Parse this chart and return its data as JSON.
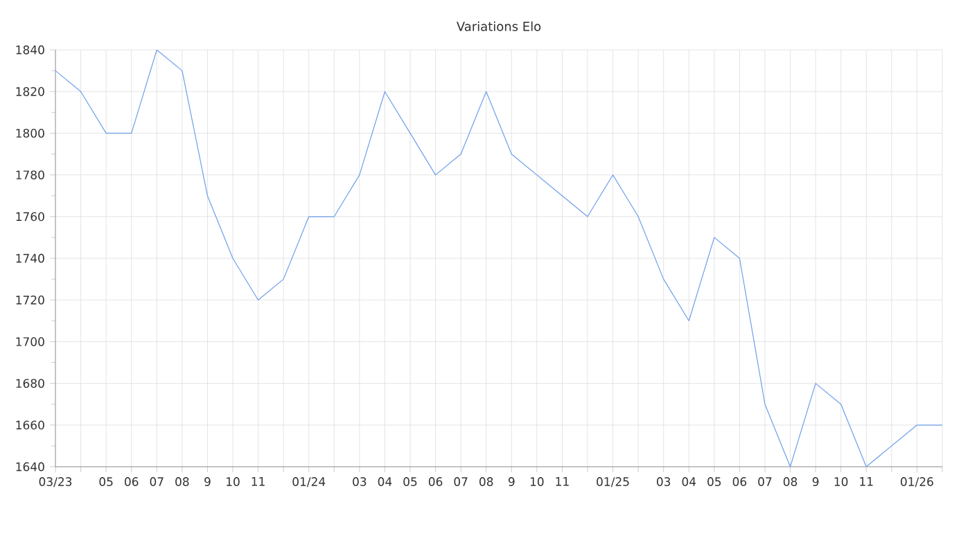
{
  "chart_data": {
    "type": "line",
    "title": "Variations Elo",
    "x": [
      "2023-03",
      "2023-04",
      "2023-05",
      "2023-06",
      "2023-07",
      "2023-08",
      "2023-09",
      "2023-10",
      "2023-11",
      "2023-12",
      "2024-01",
      "2024-02",
      "2024-03",
      "2024-04",
      "2024-05",
      "2024-06",
      "2024-07",
      "2024-08",
      "2024-09",
      "2024-10",
      "2024-11",
      "2024-12",
      "2025-01",
      "2025-02",
      "2025-03",
      "2025-04",
      "2025-05",
      "2025-06",
      "2025-07",
      "2025-08",
      "2025-09",
      "2025-10",
      "2025-11",
      "2025-12",
      "2026-01",
      "2026-02"
    ],
    "series": [
      {
        "color": "#6d9eeb",
        "values": [
          1830,
          1820,
          1800,
          1800,
          1840,
          1830,
          1770,
          1740,
          1720,
          1730,
          1760,
          1760,
          1780,
          1820,
          1800,
          1780,
          1790,
          1820,
          1790,
          1780,
          1770,
          1760,
          1780,
          1760,
          1730,
          1710,
          1750,
          1740,
          1670,
          1640,
          1680,
          1670,
          1640,
          1650,
          1660,
          1660
        ]
      }
    ],
    "xlim": [
      "2023-03",
      "2026-02"
    ],
    "xticks": [
      {
        "value": "2023-03",
        "label": "03/23"
      },
      {
        "value": "2023-04",
        "label": null
      },
      {
        "value": "2023-05",
        "label": "05"
      },
      {
        "value": "2023-06",
        "label": "06"
      },
      {
        "value": "2023-07",
        "label": "07"
      },
      {
        "value": "2023-08",
        "label": "08"
      },
      {
        "value": "2023-09",
        "label": "9"
      },
      {
        "value": "2023-10",
        "label": "10"
      },
      {
        "value": "2023-11",
        "label": "11"
      },
      {
        "value": "2023-12",
        "label": null
      },
      {
        "value": "2024-01",
        "label": "01/24"
      },
      {
        "value": "2024-02",
        "label": null
      },
      {
        "value": "2024-03",
        "label": "03"
      },
      {
        "value": "2024-04",
        "label": "04"
      },
      {
        "value": "2024-05",
        "label": "05"
      },
      {
        "value": "2024-06",
        "label": "06"
      },
      {
        "value": "2024-07",
        "label": "07"
      },
      {
        "value": "2024-08",
        "label": "08"
      },
      {
        "value": "2024-09",
        "label": "9"
      },
      {
        "value": "2024-10",
        "label": "10"
      },
      {
        "value": "2024-11",
        "label": "11"
      },
      {
        "value": "2024-12",
        "label": null
      },
      {
        "value": "2025-01",
        "label": "01/25"
      },
      {
        "value": "2025-02",
        "label": null
      },
      {
        "value": "2025-03",
        "label": "03"
      },
      {
        "value": "2025-04",
        "label": "04"
      },
      {
        "value": "2025-05",
        "label": "05"
      },
      {
        "value": "2025-06",
        "label": "06"
      },
      {
        "value": "2025-07",
        "label": "07"
      },
      {
        "value": "2025-08",
        "label": "08"
      },
      {
        "value": "2025-09",
        "label": "9"
      },
      {
        "value": "2025-10",
        "label": "10"
      },
      {
        "value": "2025-11",
        "label": "11"
      },
      {
        "value": "2025-12",
        "label": null
      },
      {
        "value": "2026-01",
        "label": "01/26"
      },
      {
        "value": "2026-02",
        "label": null
      }
    ],
    "ylim": [
      1640,
      1840
    ],
    "yticks": [
      1640,
      1660,
      1680,
      1700,
      1720,
      1740,
      1760,
      1780,
      1800,
      1820,
      1840
    ],
    "grid": true,
    "marker": "none",
    "line_style": "solid"
  }
}
